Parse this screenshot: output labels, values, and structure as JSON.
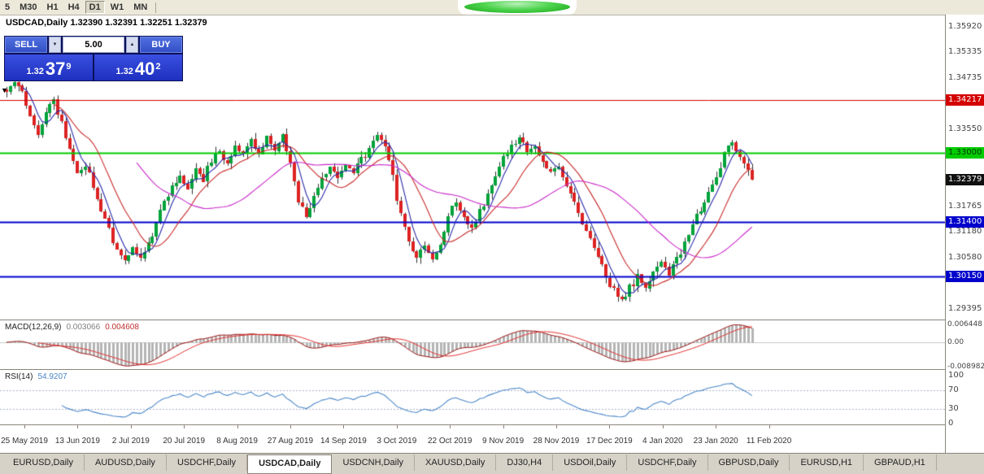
{
  "toolbar": {
    "timeframes": [
      {
        "label": "5",
        "active": false
      },
      {
        "label": "M30",
        "active": false
      },
      {
        "label": "H1",
        "active": false
      },
      {
        "label": "H4",
        "active": false
      },
      {
        "label": "D1",
        "active": true
      },
      {
        "label": "W1",
        "active": false
      },
      {
        "label": "MN",
        "active": false
      }
    ]
  },
  "chart_header": {
    "text": "USDCAD,Daily  1.32390 1.32391 1.32251 1.32379"
  },
  "one_click": {
    "sell_label": "SELL",
    "buy_label": "BUY",
    "volume": "5.00",
    "sell_price_big": "1.32",
    "sell_price_mid": "37",
    "sell_price_sup": "9",
    "buy_price_big": "1.32",
    "buy_price_mid": "40",
    "buy_price_sup": "2",
    "button_color": "#3a57c6",
    "panel_color": "#2438d2"
  },
  "icons": {
    "volume_down": "▼",
    "volume_up": "▲",
    "collapse": "▼"
  },
  "price_axis": {
    "labels": [
      {
        "text": "1.35920",
        "price": 1.3592
      },
      {
        "text": "1.35335",
        "price": 1.35335
      },
      {
        "text": "1.34735",
        "price": 1.34735
      },
      {
        "text": "1.33550",
        "price": 1.3355
      },
      {
        "text": "1.31765",
        "price": 1.31765
      },
      {
        "text": "1.31180",
        "price": 1.3118
      },
      {
        "text": "1.30580",
        "price": 1.3058
      },
      {
        "text": "1.29395",
        "price": 1.29395
      }
    ],
    "tags": [
      {
        "text": "1.34217",
        "price": 1.34217,
        "bg": "#d40000",
        "fg": "#ffffff"
      },
      {
        "text": "1.33000",
        "price": 1.33,
        "bg": "#00cc00",
        "fg": "#003300"
      },
      {
        "text": "1.32379",
        "price": 1.32379,
        "bg": "#111111",
        "fg": "#ffffff"
      },
      {
        "text": "1.31400",
        "price": 1.314,
        "bg": "#0000cc",
        "fg": "#ffffff"
      },
      {
        "text": "1.30150",
        "price": 1.3015,
        "bg": "#0000cc",
        "fg": "#ffffff"
      }
    ]
  },
  "macd_panel": {
    "title": "MACD(12,26,9)",
    "main_value": "0.003066",
    "signal_value": "0.004608",
    "axis_labels": [
      {
        "text": "0.006448",
        "value": 0.006448
      },
      {
        "text": "0.00",
        "value": 0
      },
      {
        "text": "-0.008982",
        "value": -0.008982
      }
    ]
  },
  "rsi_panel": {
    "title": "RSI(14)",
    "value": "54.9207",
    "axis_labels": [
      {
        "text": "100",
        "value": 100
      },
      {
        "text": "70",
        "value": 70
      },
      {
        "text": "30",
        "value": 30
      },
      {
        "text": "0",
        "value": 0
      }
    ],
    "levels": [
      70,
      30
    ]
  },
  "date_axis": {
    "labels": [
      "25 May 2019",
      "13 Jun 2019",
      "2 Jul 2019",
      "20 Jul 2019",
      "8 Aug 2019",
      "27 Aug 2019",
      "14 Sep 2019",
      "3 Oct 2019",
      "22 Oct 2019",
      "9 Nov 2019",
      "28 Nov 2019",
      "17 Dec 2019",
      "4 Jan 2020",
      "23 Jan 2020",
      "11 Feb 2020"
    ]
  },
  "tabs": [
    {
      "label": "EURUSD,Daily",
      "active": false
    },
    {
      "label": "AUDUSD,Daily",
      "active": false
    },
    {
      "label": "USDCHF,Daily",
      "active": false
    },
    {
      "label": "USDCAD,Daily",
      "active": true
    },
    {
      "label": "USDCNH,Daily",
      "active": false
    },
    {
      "label": "XAUUSD,Daily",
      "active": false
    },
    {
      "label": "DJ30,H4",
      "active": false
    },
    {
      "label": "USDOil,Daily",
      "active": false
    },
    {
      "label": "USDCHF,Daily",
      "active": false
    },
    {
      "label": "GBPUSD,Daily",
      "active": false
    },
    {
      "label": "EURUSD,H1",
      "active": false
    },
    {
      "label": "GBPAUD,H1",
      "active": false
    }
  ],
  "chart_data": {
    "type": "candlestick",
    "symbol": "USDCAD",
    "timeframe": "Daily",
    "current_price": 1.32379,
    "num_candles": 190,
    "y_range": [
      1.2915,
      1.3619
    ],
    "candle_up": "#00a33a",
    "candle_down": "#dd2222",
    "wick_color": "#303030",
    "levels": [
      {
        "price": 1.34217,
        "color": "#d40000",
        "width": 1
      },
      {
        "price": 1.33,
        "color": "#00cc00",
        "width": 2
      },
      {
        "price": 1.314,
        "color": "#0000cc",
        "width": 2
      },
      {
        "price": 1.3015,
        "color": "#0000cc",
        "width": 2
      }
    ],
    "ma": [
      {
        "period": 5,
        "color": "#2828a8"
      },
      {
        "period": 13,
        "color": "#c82828"
      },
      {
        "period": 34,
        "color": "#c828c8"
      }
    ],
    "macd": {
      "hist_color": "#b4b4b4",
      "macd_color": "#9b1515",
      "signal_color": "#e23030"
    },
    "rsi": {
      "color": "#4a86c8"
    },
    "waypoints": [
      [
        0,
        1.3435
      ],
      [
        2,
        1.3465
      ],
      [
        4,
        1.344
      ],
      [
        6,
        1.338
      ],
      [
        8,
        1.3345
      ],
      [
        10,
        1.34
      ],
      [
        12,
        1.3425
      ],
      [
        14,
        1.3365
      ],
      [
        16,
        1.3305
      ],
      [
        18,
        1.3245
      ],
      [
        20,
        1.3275
      ],
      [
        22,
        1.3225
      ],
      [
        24,
        1.3165
      ],
      [
        26,
        1.3125
      ],
      [
        28,
        1.3075
      ],
      [
        30,
        1.3048
      ],
      [
        32,
        1.3085
      ],
      [
        34,
        1.3058
      ],
      [
        36,
        1.3095
      ],
      [
        38,
        1.3135
      ],
      [
        40,
        1.3185
      ],
      [
        42,
        1.3225
      ],
      [
        44,
        1.3245
      ],
      [
        46,
        1.3215
      ],
      [
        48,
        1.3258
      ],
      [
        50,
        1.3238
      ],
      [
        52,
        1.3285
      ],
      [
        54,
        1.3305
      ],
      [
        56,
        1.3275
      ],
      [
        58,
        1.3315
      ],
      [
        60,
        1.3295
      ],
      [
        62,
        1.3325
      ],
      [
        64,
        1.3305
      ],
      [
        66,
        1.3332
      ],
      [
        68,
        1.3312
      ],
      [
        70,
        1.3338
      ],
      [
        72,
        1.3285
      ],
      [
        74,
        1.3185
      ],
      [
        76,
        1.3155
      ],
      [
        78,
        1.3195
      ],
      [
        80,
        1.3235
      ],
      [
        82,
        1.3262
      ],
      [
        84,
        1.3235
      ],
      [
        86,
        1.3272
      ],
      [
        88,
        1.3252
      ],
      [
        90,
        1.3282
      ],
      [
        92,
        1.3305
      ],
      [
        94,
        1.3342
      ],
      [
        96,
        1.3318
      ],
      [
        98,
        1.3242
      ],
      [
        100,
        1.3152
      ],
      [
        102,
        1.3095
      ],
      [
        104,
        1.3062
      ],
      [
        106,
        1.3092
      ],
      [
        108,
        1.3052
      ],
      [
        110,
        1.3082
      ],
      [
        112,
        1.3152
      ],
      [
        114,
        1.3188
      ],
      [
        116,
        1.3152
      ],
      [
        118,
        1.3122
      ],
      [
        120,
        1.3162
      ],
      [
        122,
        1.3205
      ],
      [
        124,
        1.3245
      ],
      [
        126,
        1.3285
      ],
      [
        128,
        1.3315
      ],
      [
        130,
        1.3332
      ],
      [
        132,
        1.3305
      ],
      [
        134,
        1.3322
      ],
      [
        136,
        1.3282
      ],
      [
        138,
        1.3252
      ],
      [
        140,
        1.3272
      ],
      [
        142,
        1.3222
      ],
      [
        144,
        1.3182
      ],
      [
        146,
        1.3142
      ],
      [
        148,
        1.3102
      ],
      [
        150,
        1.3062
      ],
      [
        152,
        1.3012
      ],
      [
        154,
        1.2982
      ],
      [
        156,
        1.2962
      ],
      [
        158,
        1.2988
      ],
      [
        160,
        1.3012
      ],
      [
        162,
        1.2992
      ],
      [
        164,
        1.3022
      ],
      [
        166,
        1.3042
      ],
      [
        168,
        1.3022
      ],
      [
        170,
        1.3052
      ],
      [
        172,
        1.3092
      ],
      [
        174,
        1.3132
      ],
      [
        176,
        1.3172
      ],
      [
        178,
        1.3212
      ],
      [
        180,
        1.3252
      ],
      [
        182,
        1.3295
      ],
      [
        184,
        1.3325
      ],
      [
        186,
        1.3298
      ],
      [
        188,
        1.3252
      ],
      [
        189,
        1.32379
      ]
    ]
  }
}
